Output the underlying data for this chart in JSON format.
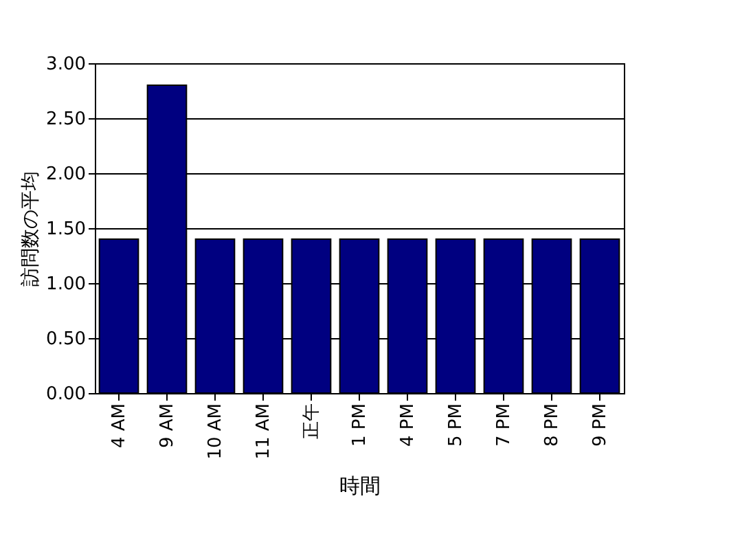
{
  "chart_data": {
    "type": "bar",
    "xlabel": "時間",
    "ylabel": "訪問数の平均",
    "categories": [
      "4 AM",
      "9 AM",
      "10 AM",
      "11 AM",
      "正午",
      "1 PM",
      "4 PM",
      "5 PM",
      "7 PM",
      "8 PM",
      "9 PM"
    ],
    "values": [
      1.4,
      2.8,
      1.4,
      1.4,
      1.4,
      1.4,
      1.4,
      1.4,
      1.4,
      1.4,
      1.4
    ],
    "color": "#000080",
    "ylim": [
      0,
      3
    ],
    "yticks": [
      {
        "value": 0,
        "label": "0.00"
      },
      {
        "value": 0.5,
        "label": "0.50"
      },
      {
        "value": 1,
        "label": "1.00"
      },
      {
        "value": 1.5,
        "label": "1.50"
      },
      {
        "value": 2,
        "label": "2.00"
      },
      {
        "value": 2.5,
        "label": "2.50"
      },
      {
        "value": 3,
        "label": "3.00"
      }
    ],
    "grid": "y"
  }
}
